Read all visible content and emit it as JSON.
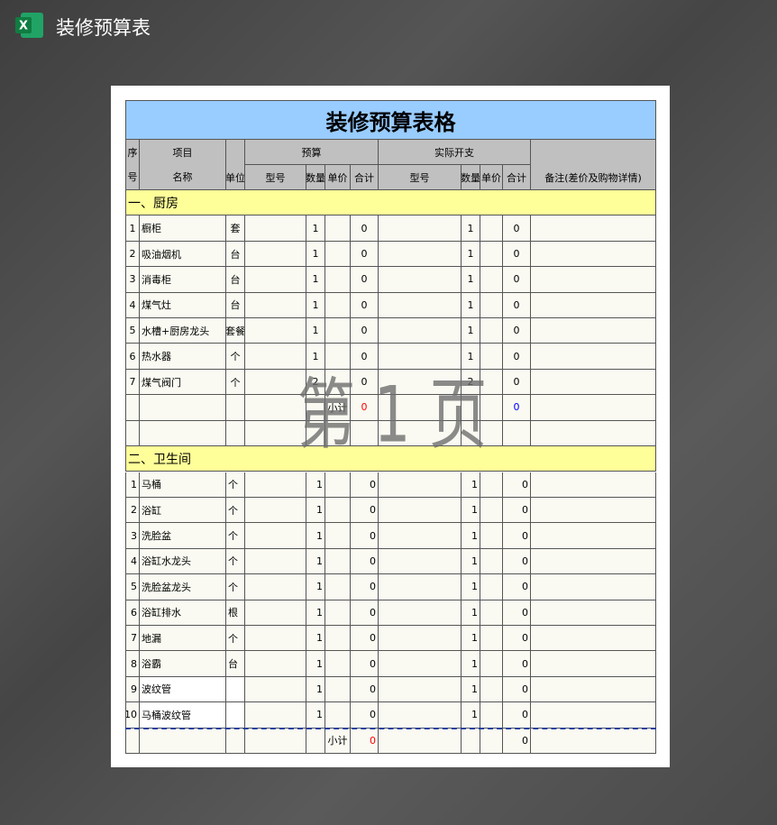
{
  "header": {
    "title": "装修预算表"
  },
  "sheet": {
    "title": "装修预算表格",
    "headers": {
      "no_top": "序",
      "no_bottom": "号",
      "item_top": "项目",
      "item_bottom": "名称",
      "unit": "单位",
      "budget": "预算",
      "actual": "实际开支",
      "remark": "备注(差价及购物详情)",
      "sub": [
        "型号",
        "数量",
        "单价",
        "合计",
        "型号",
        "数量",
        "单价",
        "合计"
      ]
    },
    "sections": [
      {
        "title": "一、厨房",
        "rows": [
          {
            "no": 1,
            "name": "橱柜",
            "unit": "套",
            "qty": 1,
            "total": 0,
            "actual_qty": 1,
            "actual_total": 0
          },
          {
            "no": 2,
            "name": "吸油烟机",
            "unit": "台",
            "qty": 1,
            "total": 0,
            "actual_qty": 1,
            "actual_total": 0
          },
          {
            "no": 3,
            "name": "消毒柜",
            "unit": "台",
            "qty": 1,
            "total": 0,
            "actual_qty": 1,
            "actual_total": 0
          },
          {
            "no": 4,
            "name": "煤气灶",
            "unit": "台",
            "qty": 1,
            "total": 0,
            "actual_qty": 1,
            "actual_total": 0
          },
          {
            "no": 5,
            "name": "水槽+厨房龙头",
            "unit": "套餐",
            "qty": 1,
            "total": 0,
            "actual_qty": 1,
            "actual_total": 0
          },
          {
            "no": 6,
            "name": "热水器",
            "unit": "个",
            "qty": 1,
            "total": 0,
            "actual_qty": 1,
            "actual_total": 0
          },
          {
            "no": 7,
            "name": "煤气阀门",
            "unit": "个",
            "qty": 2,
            "total": 0,
            "actual_qty": 2,
            "actual_total": 0
          }
        ],
        "subtotal": {
          "label": "小计",
          "total": 0,
          "actual_total": 0,
          "total_color": "#ff0000",
          "actual_total_color": "#0000ff"
        }
      },
      {
        "title": "二、卫生间",
        "rows": [
          {
            "no": 1,
            "name": "马桶",
            "unit": "个",
            "qty": 1,
            "total": 0,
            "actual_qty": 1,
            "actual_total": 0
          },
          {
            "no": 2,
            "name": "浴缸",
            "unit": "个",
            "qty": 1,
            "total": 0,
            "actual_qty": 1,
            "actual_total": 0
          },
          {
            "no": 3,
            "name": "洗脸盆",
            "unit": "个",
            "qty": 1,
            "total": 0,
            "actual_qty": 1,
            "actual_total": 0
          },
          {
            "no": 4,
            "name": "浴缸水龙头",
            "unit": "个",
            "qty": 1,
            "total": 0,
            "actual_qty": 1,
            "actual_total": 0
          },
          {
            "no": 5,
            "name": "洗脸盆龙头",
            "unit": "个",
            "qty": 1,
            "total": 0,
            "actual_qty": 1,
            "actual_total": 0
          },
          {
            "no": 6,
            "name": "浴缸排水",
            "unit": "根",
            "qty": 1,
            "total": 0,
            "actual_qty": 1,
            "actual_total": 0
          },
          {
            "no": 7,
            "name": "地漏",
            "unit": "个",
            "qty": 1,
            "total": 0,
            "actual_qty": 1,
            "actual_total": 0
          },
          {
            "no": 8,
            "name": "浴霸",
            "unit": "台",
            "qty": 1,
            "total": 0,
            "actual_qty": 1,
            "actual_total": 0
          },
          {
            "no": 9,
            "name": "波纹管",
            "unit": null,
            "qty": 1,
            "total": 0,
            "actual_qty": 1,
            "actual_total": 0
          },
          {
            "no": 10,
            "name": "马桶波纹管",
            "unit": null,
            "qty": 1,
            "total": 0,
            "actual_qty": 1,
            "actual_total": 0
          }
        ],
        "subtotal": {
          "label": "小计",
          "total": 0,
          "actual_total": 0,
          "total_color": "#ff0000",
          "actual_total_color": "#000000"
        }
      }
    ]
  },
  "watermark": "第 1 页"
}
